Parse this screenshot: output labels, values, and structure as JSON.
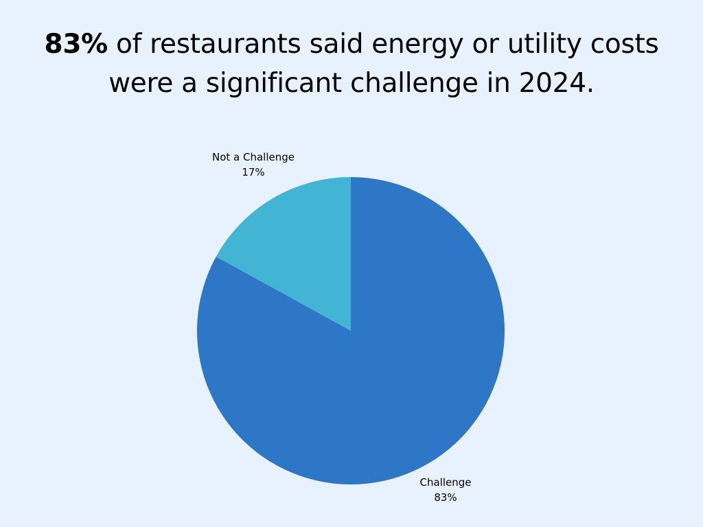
{
  "chart_data": {
    "type": "pie",
    "title_bold": "83%",
    "title_rest": " of restaurants said energy or utility costs were a significant challenge in 2024.",
    "slices": [
      {
        "label": "Not a Challenge",
        "value": 17,
        "value_label": "17%",
        "color": "#42B5D5"
      },
      {
        "label": "Challenge",
        "value": 83,
        "value_label": "83%",
        "color": "#2D77C6"
      }
    ],
    "start": "12 o'clock",
    "direction": "counterclockwise for Not a Challenge",
    "background": "#E8F2FE"
  }
}
